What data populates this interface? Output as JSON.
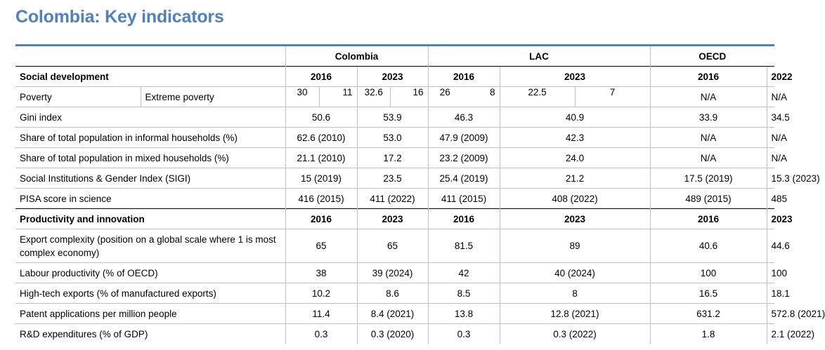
{
  "title": "Colombia: Key indicators",
  "groups": [
    "Colombia",
    "LAC",
    "OECD"
  ],
  "social": {
    "heading": "Social development",
    "years": [
      "2016",
      "2023",
      "2016",
      "2023",
      "2016",
      "2022"
    ],
    "poverty": {
      "label": "Poverty",
      "sublabel": "Extreme poverty",
      "col2016": [
        "30",
        "11"
      ],
      "col2023": [
        "32.6",
        "16"
      ],
      "lac2016": [
        "26",
        "8"
      ],
      "lac2023": [
        "22.5",
        "7"
      ],
      "oecd2016": "N/A",
      "oecd2022": "N/A"
    },
    "rows": [
      {
        "label": "Gini index",
        "v": [
          "50.6",
          "53.9",
          "46.3",
          "40.9",
          "33.9",
          "34.5"
        ]
      },
      {
        "label": "Share of total population in informal households (%)",
        "v": [
          "62.6 (2010)",
          "53.0",
          "47.9 (2009)",
          "42.3",
          "N/A",
          "N/A"
        ]
      },
      {
        "label": "Share of total population in mixed households (%)",
        "v": [
          "21.1 (2010)",
          "17.2",
          "23.2 (2009)",
          "24.0",
          "N/A",
          "N/A"
        ]
      },
      {
        "label": "Social Institutions & Gender Index (SIGI)",
        "v": [
          "15 (2019)",
          "23.5",
          "25.4 (2019)",
          "21.2",
          "17.5 (2019)",
          "15.3 (2023)"
        ]
      },
      {
        "label": "PISA score in science",
        "v": [
          "416 (2015)",
          "411 (2022)",
          "411 (2015)",
          "408 (2022)",
          "489 (2015)",
          "485"
        ]
      }
    ]
  },
  "productivity": {
    "heading": "Productivity and innovation",
    "years": [
      "2016",
      "2023",
      "2016",
      "2023",
      "2016",
      "2023"
    ],
    "rows": [
      {
        "label": "Export complexity (position on a global scale where 1 is most complex economy)",
        "v": [
          "65",
          "65",
          "81.5",
          "89",
          "40.6",
          "44.6"
        ]
      },
      {
        "label": "Labour productivity (% of OECD)",
        "v": [
          "38",
          "39 (2024)",
          "42",
          "40 (2024)",
          "100",
          "100"
        ]
      },
      {
        "label": "High-tech exports (% of manufactured exports)",
        "v": [
          "10.2",
          "8.6",
          "8.5",
          "8",
          "16.5",
          "18.1"
        ]
      },
      {
        "label": "Patent applications per million people",
        "v": [
          "11.4",
          "8.4 (2021)",
          "13.8",
          "12.8 (2021)",
          "631.2",
          "572.8 (2021)"
        ]
      },
      {
        "label": "R&D expenditures (% of GDP)",
        "v": [
          "0.3",
          "0.3 (2020)",
          "0.3",
          "0.3 (2022)",
          "1.8",
          "2.1 (2022)"
        ]
      }
    ]
  }
}
